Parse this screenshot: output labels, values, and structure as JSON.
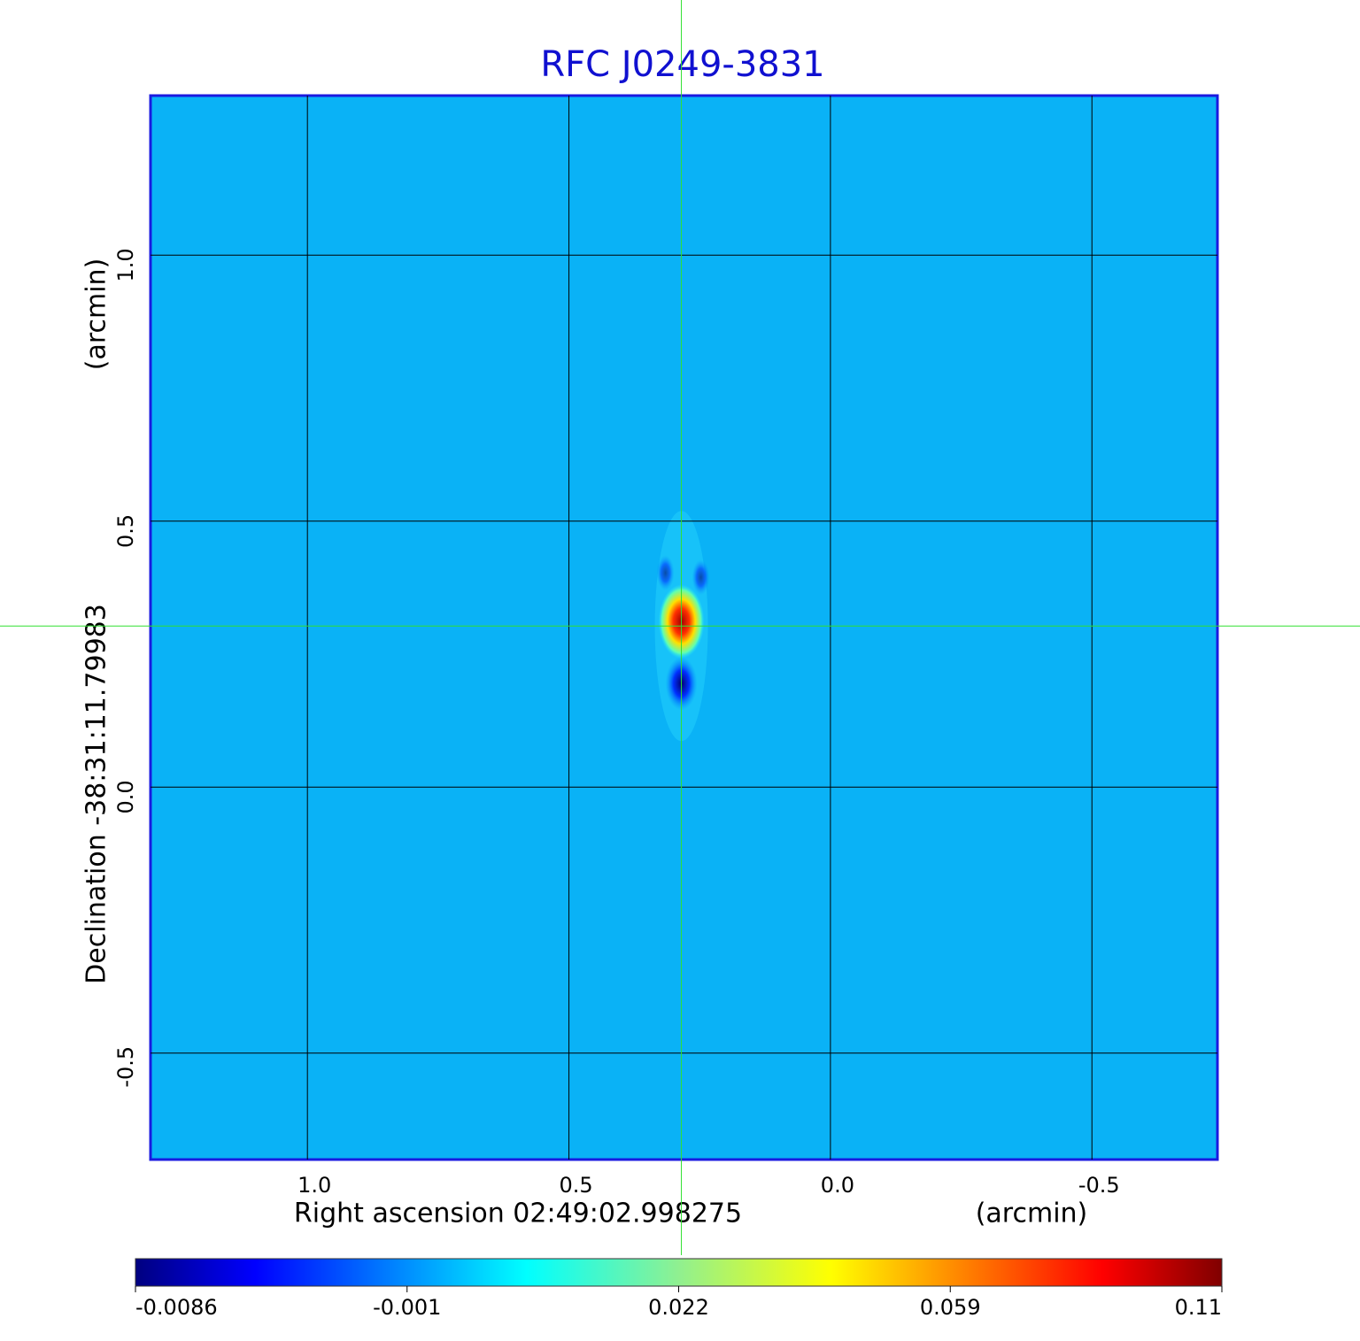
{
  "chart_data": {
    "type": "image",
    "title": "RFC J0249-3831",
    "xlabel": "Right ascension  02:49:02.998275",
    "xunit": "(arcmin)",
    "ylabel": "Declination  -38:31:11.79983",
    "yunit": "(arcmin)",
    "xlim": [
      1.3,
      -0.74
    ],
    "ylim": [
      -0.7,
      1.3
    ],
    "xticks": [
      {
        "value": 1.0,
        "label": "1.0"
      },
      {
        "value": 0.5,
        "label": "0.5"
      },
      {
        "value": 0.0,
        "label": "0.0"
      },
      {
        "value": -0.5,
        "label": "-0.5"
      }
    ],
    "yticks": [
      {
        "value": 1.0,
        "label": "1.0"
      },
      {
        "value": 0.5,
        "label": "0.5"
      },
      {
        "value": 0.0,
        "label": "0.0"
      },
      {
        "value": -0.5,
        "label": "-0.5"
      }
    ],
    "grid": true,
    "crosshair": {
      "x": 0.285,
      "y": 0.303
    },
    "colormap": "jet",
    "colorbar_ticks": [
      -0.0086,
      -0.001,
      0.022,
      0.059,
      0.11
    ]
  }
}
